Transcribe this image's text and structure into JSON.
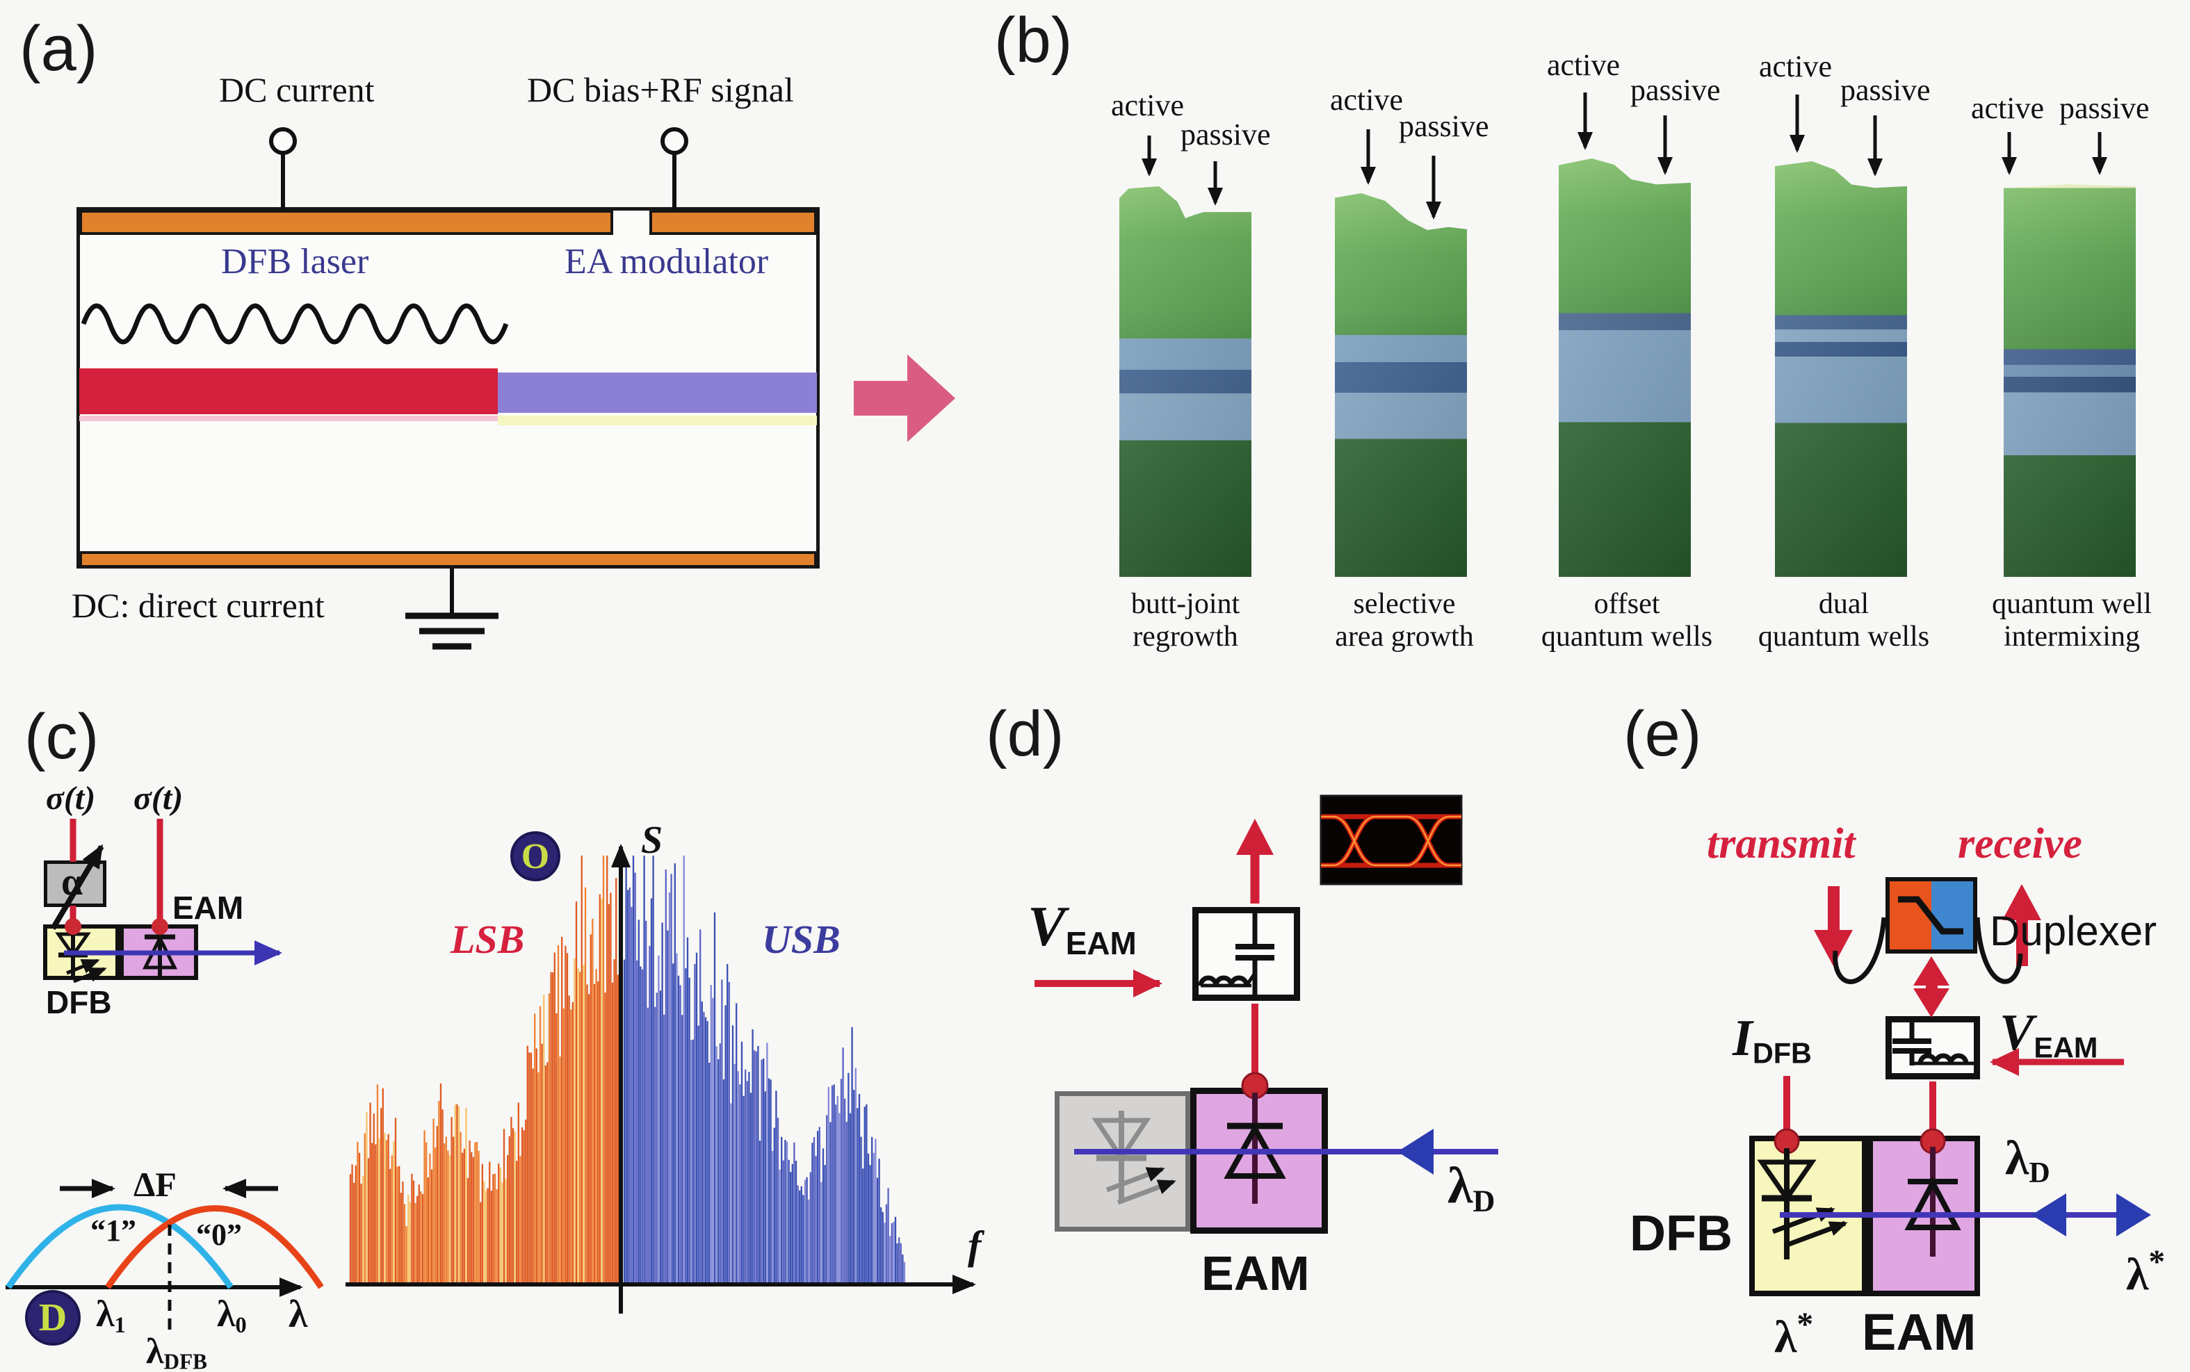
{
  "colors": {
    "background": "#f7f7f5",
    "contact_orange": "#e2812c",
    "waveguide_red": "#d6213e",
    "waveguide_purple": "#8b7fd6",
    "dfb_yellow": "#f6f6bd",
    "eam_plum": "#dfa6e2",
    "signal_red": "#cf2038",
    "light_blue_arrow": "#3c35b3",
    "pink_arrow": "#da5c83",
    "lsb_orange": "#e05a20",
    "usb_blue": "#3a4fb4",
    "arc_blue": "#2fb2e8",
    "arc_red": "#e84318",
    "badge_navy": "#2c2470",
    "badge_letter": "#c8dc46",
    "label_blue": "#39398f"
  },
  "panels": {
    "a": {
      "label": "(a)",
      "terminal_left": "DC current",
      "terminal_right": "DC bias+RF signal",
      "region_left": "DFB laser",
      "region_right": "EA modulator",
      "footnote": "DC: direct current"
    },
    "b": {
      "label": "(b)",
      "columns": [
        {
          "active": "active",
          "passive": "passive",
          "caption1": "butt-joint",
          "caption2": "regrowth"
        },
        {
          "active": "active",
          "passive": "passive",
          "caption1": "selective",
          "caption2": "area growth"
        },
        {
          "active": "active",
          "passive": "passive",
          "caption1": "offset",
          "caption2": "quantum wells"
        },
        {
          "active": "active",
          "passive": "passive",
          "caption1": "dual",
          "caption2": "quantum wells"
        },
        {
          "active": "active",
          "passive": "passive",
          "caption1": "quantum well",
          "caption2": "intermixing"
        }
      ]
    },
    "c": {
      "label": "(c)",
      "sigma_left": "σ(t)",
      "sigma_right": "σ(t)",
      "alpha": "α",
      "eam": "EAM",
      "dfb": "DFB",
      "mod_diagram": {
        "badge": "D",
        "delta_f": "ΔF",
        "bit_one": "“1”",
        "bit_zero": "“0”",
        "lambda": "λ",
        "sub_one": "1",
        "sub_zero": "0",
        "sub_dfb": "DFB",
        "axis_label": "λ"
      },
      "spectrum": {
        "badge": "O",
        "y_axis": "S",
        "x_axis": "f",
        "lsb": "LSB",
        "usb": "USB",
        "lsb_envelope": [
          [
            0,
            0.26
          ],
          [
            0.05,
            0.36
          ],
          [
            0.1,
            0.42
          ],
          [
            0.16,
            0.36
          ],
          [
            0.21,
            0.18
          ],
          [
            0.26,
            0.28
          ],
          [
            0.32,
            0.42
          ],
          [
            0.38,
            0.4
          ],
          [
            0.44,
            0.32
          ],
          [
            0.5,
            0.26
          ],
          [
            0.56,
            0.3
          ],
          [
            0.62,
            0.4
          ],
          [
            0.68,
            0.52
          ],
          [
            0.74,
            0.64
          ],
          [
            0.8,
            0.76
          ],
          [
            0.86,
            0.86
          ],
          [
            0.92,
            0.94
          ],
          [
            0.97,
            0.98
          ],
          [
            1,
            0.95
          ]
        ],
        "usb_envelope": [
          [
            0,
            0.98
          ],
          [
            0.05,
            0.96
          ],
          [
            0.1,
            0.93
          ],
          [
            0.15,
            0.88
          ],
          [
            0.2,
            0.82
          ],
          [
            0.26,
            0.75
          ],
          [
            0.32,
            0.68
          ],
          [
            0.38,
            0.61
          ],
          [
            0.44,
            0.53
          ],
          [
            0.5,
            0.45
          ],
          [
            0.55,
            0.37
          ],
          [
            0.6,
            0.3
          ],
          [
            0.65,
            0.27
          ],
          [
            0.7,
            0.34
          ],
          [
            0.75,
            0.45
          ],
          [
            0.79,
            0.49
          ],
          [
            0.84,
            0.41
          ],
          [
            0.89,
            0.3
          ],
          [
            0.94,
            0.17
          ],
          [
            1,
            0.05
          ]
        ]
      }
    },
    "d": {
      "label": "(d)",
      "v_base": "V",
      "v_sub": "EAM",
      "eam": "EAM",
      "lambda": "λ",
      "lambda_sub": "D"
    },
    "e": {
      "label": "(e)",
      "transmit": "transmit",
      "receive": "receive",
      "duplexer": "Duplexer",
      "i_base": "I",
      "i_sub": "DFB",
      "v_base": "V",
      "v_sub": "EAM",
      "dfb": "DFB",
      "eam": "EAM",
      "lambda": "λ",
      "lambda_sub": "D",
      "star": "*"
    }
  }
}
